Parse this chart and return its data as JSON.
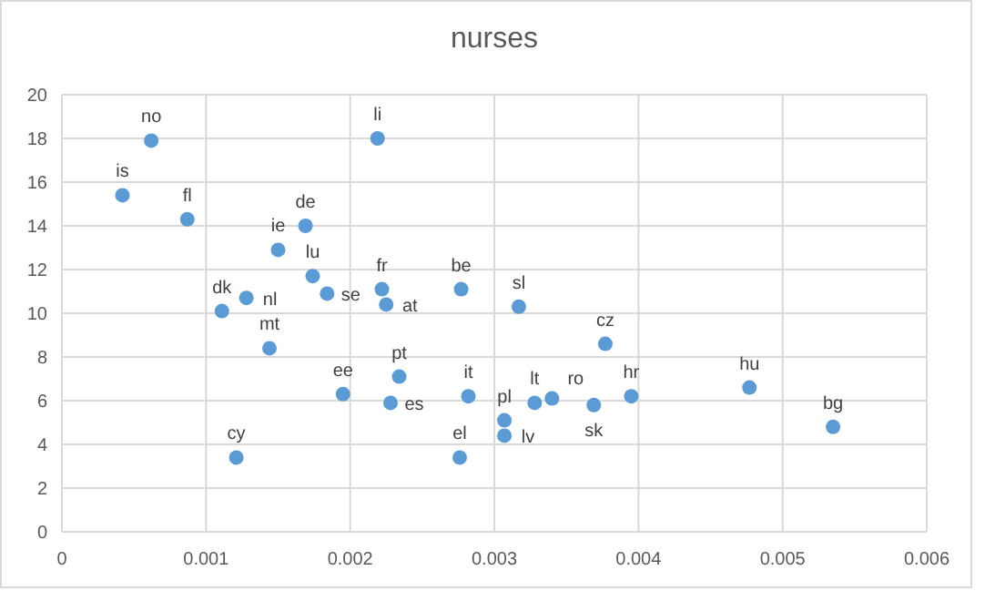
{
  "chart_data": {
    "type": "scatter",
    "title": "nurses",
    "xlim": [
      0,
      0.006
    ],
    "xticks": [
      0,
      0.001,
      0.002,
      0.003,
      0.004,
      0.005,
      0.006
    ],
    "ylim": [
      0,
      20
    ],
    "yticks": [
      0,
      2,
      4,
      6,
      8,
      10,
      12,
      14,
      16,
      18,
      20
    ],
    "grid": true,
    "marker": "circle",
    "x": [
      0.00062,
      0.00042,
      0.00087,
      0.00219,
      0.00169,
      0.0015,
      0.00174,
      0.00184,
      0.00111,
      0.00128,
      0.00222,
      0.00225,
      0.00277,
      0.00317,
      0.00377,
      0.00144,
      0.00195,
      0.00234,
      0.00228,
      0.00282,
      0.00121,
      0.00276,
      0.00307,
      0.00307,
      0.00328,
      0.0034,
      0.00369,
      0.00395,
      0.00477,
      0.00535
    ],
    "series": [
      {
        "color": "#5b9bd5",
        "values": [
          17.9,
          15.4,
          14.3,
          18.0,
          14.0,
          12.9,
          11.7,
          10.9,
          10.1,
          10.7,
          11.1,
          10.4,
          11.1,
          10.3,
          8.6,
          8.4,
          6.3,
          7.1,
          5.9,
          6.2,
          3.4,
          3.4,
          5.1,
          4.4,
          5.9,
          6.1,
          5.8,
          6.2,
          6.6,
          4.8
        ]
      }
    ],
    "annotations": [
      {
        "text": "no",
        "x": 0.00062,
        "y": 17.9
      },
      {
        "text": "is",
        "x": 0.00042,
        "y": 15.4
      },
      {
        "text": "fl",
        "x": 0.00087,
        "y": 14.3
      },
      {
        "text": "li",
        "x": 0.00219,
        "y": 18.0
      },
      {
        "text": "de",
        "x": 0.00169,
        "y": 14.0
      },
      {
        "text": "ie",
        "x": 0.0015,
        "y": 12.9
      },
      {
        "text": "lu",
        "x": 0.00174,
        "y": 11.7
      },
      {
        "text": "se",
        "x": 0.00184,
        "y": 10.9
      },
      {
        "text": "dk",
        "x": 0.00111,
        "y": 10.1
      },
      {
        "text": "nl",
        "x": 0.00128,
        "y": 10.7
      },
      {
        "text": "fr",
        "x": 0.00222,
        "y": 11.1
      },
      {
        "text": "at",
        "x": 0.00225,
        "y": 10.4
      },
      {
        "text": "be",
        "x": 0.00277,
        "y": 11.1
      },
      {
        "text": "sl",
        "x": 0.00317,
        "y": 10.3
      },
      {
        "text": "cz",
        "x": 0.00377,
        "y": 8.6
      },
      {
        "text": "mt",
        "x": 0.00144,
        "y": 8.4
      },
      {
        "text": "ee",
        "x": 0.00195,
        "y": 6.3
      },
      {
        "text": "pt",
        "x": 0.00234,
        "y": 7.1
      },
      {
        "text": "es",
        "x": 0.00228,
        "y": 5.9
      },
      {
        "text": "it",
        "x": 0.00282,
        "y": 6.2
      },
      {
        "text": "cy",
        "x": 0.00121,
        "y": 3.4
      },
      {
        "text": "el",
        "x": 0.00276,
        "y": 3.4
      },
      {
        "text": "pl",
        "x": 0.00307,
        "y": 5.1
      },
      {
        "text": "lv",
        "x": 0.00307,
        "y": 4.4
      },
      {
        "text": "lt",
        "x": 0.00328,
        "y": 5.9
      },
      {
        "text": "ro",
        "x": 0.0034,
        "y": 6.1
      },
      {
        "text": "sk",
        "x": 0.00369,
        "y": 5.8
      },
      {
        "text": "hr",
        "x": 0.00395,
        "y": 6.2
      },
      {
        "text": "hu",
        "x": 0.00477,
        "y": 6.6
      },
      {
        "text": "bg",
        "x": 0.00535,
        "y": 4.8
      }
    ]
  }
}
